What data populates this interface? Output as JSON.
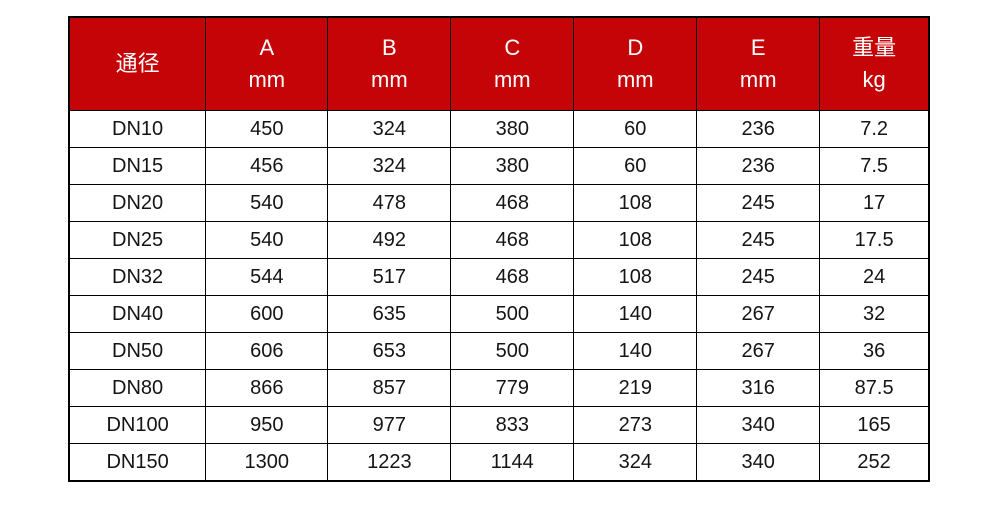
{
  "page": {
    "background": "#ffffff"
  },
  "colors": {
    "header_bg": "#c40407",
    "header_text": "#ffffff",
    "body_text": "#141414",
    "border": "#000000"
  },
  "chart_data": {
    "type": "table",
    "title": "",
    "columns": [
      {
        "label": "通径",
        "unit": ""
      },
      {
        "label": "A",
        "unit": "mm"
      },
      {
        "label": "B",
        "unit": "mm"
      },
      {
        "label": "C",
        "unit": "mm"
      },
      {
        "label": "D",
        "unit": "mm"
      },
      {
        "label": "E",
        "unit": "mm"
      },
      {
        "label": "重量",
        "unit": "kg"
      }
    ],
    "column_widths_percent": [
      15.9,
      14.2,
      14.3,
      14.3,
      14.3,
      14.3,
      12.7
    ],
    "rows": [
      [
        "DN10",
        "450",
        "324",
        "380",
        "60",
        "236",
        "7.2"
      ],
      [
        "DN15",
        "456",
        "324",
        "380",
        "60",
        "236",
        "7.5"
      ],
      [
        "DN20",
        "540",
        "478",
        "468",
        "108",
        "245",
        "17"
      ],
      [
        "DN25",
        "540",
        "492",
        "468",
        "108",
        "245",
        "17.5"
      ],
      [
        "DN32",
        "544",
        "517",
        "468",
        "108",
        "245",
        "24"
      ],
      [
        "DN40",
        "600",
        "635",
        "500",
        "140",
        "267",
        "32"
      ],
      [
        "DN50",
        "606",
        "653",
        "500",
        "140",
        "267",
        "36"
      ],
      [
        "DN80",
        "866",
        "857",
        "779",
        "219",
        "316",
        "87.5"
      ],
      [
        "DN100",
        "950",
        "977",
        "833",
        "273",
        "340",
        "165"
      ],
      [
        "DN150",
        "1300",
        "1223",
        "1144",
        "324",
        "340",
        "252"
      ]
    ]
  }
}
